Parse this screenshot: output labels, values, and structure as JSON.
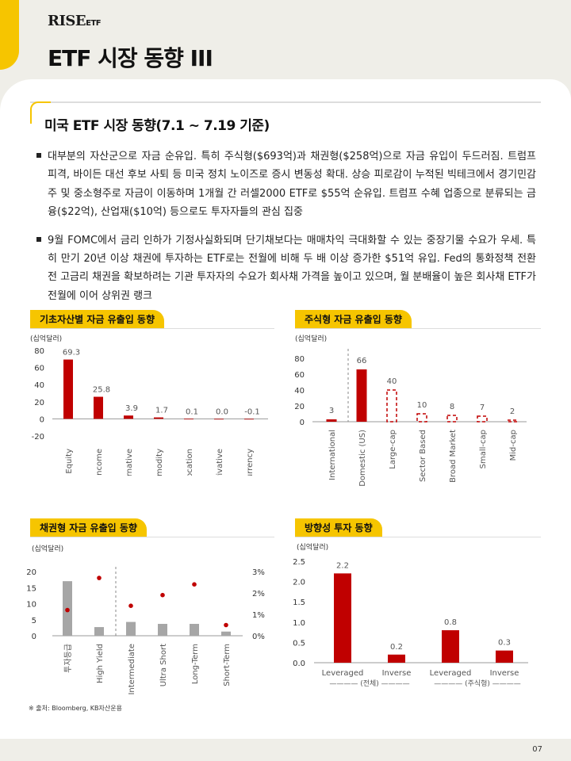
{
  "header": {
    "logo_main": "RISE",
    "logo_sub": "ETF",
    "title": "ETF 시장 동향 III"
  },
  "section": {
    "heading": "미국 ETF 시장 동향(7.1 ~ 7.19 기준)"
  },
  "bullets": [
    "대부분의 자산군으로 자금 순유입. 특히 주식형($693억)과 채권형($258억)으로 자금 유입이 두드러짐. 트럼프 피격, 바이든 대선 후보 사퇴 등 미국 정치 노이즈로 증시 변동성 확대. 상승 피로감이 누적된 빅테크에서 경기민감주 및 중소형주로 자금이 이동하며 1개월 간 러셀2000 ETF로 $55억 순유입. 트럼프 수혜 업종으로 분류되는 금융($22억), 산업재($10억) 등으로도 투자자들의 관심 집중",
    "9월 FOMC에서 금리 인하가 기정사실화되며 단기채보다는 매매차익 극대화할 수 있는 중장기물 수요가 우세. 특히 만기 20년 이상 채권에 투자하는 ETF로는 전월에 비해 두 배 이상 증가한 $51억 유입. Fed의 통화정책 전환 전 고금리 채권을 확보하려는 기관 투자자의 수요가 회사채 가격을 높이고 있으며, 월 분배율이 높은 회사채 ETF가 전월에 이어 상위권 랭크"
  ],
  "charts": [
    {
      "title": "기초자산별 자금 유출입 동향",
      "unit": "(십억달러)",
      "chart_data": {
        "type": "bar",
        "categories": [
          "Equity",
          "Fixed Income",
          "Alternative",
          "Commodity",
          "Asset Allocation",
          "Derivative",
          "Currency"
        ],
        "values": [
          69.3,
          25.8,
          3.9,
          1.7,
          0.1,
          0.0,
          -0.1
        ],
        "labels": [
          "69.3",
          "25.8",
          "3.9",
          "1.7",
          "0.1",
          "0.0",
          "-0.1"
        ],
        "yticks": [
          "80",
          "60",
          "40",
          "20",
          "0",
          "-20"
        ],
        "ylim": [
          -20,
          80
        ],
        "colors": {
          "bar": "#c00000"
        }
      }
    },
    {
      "title": "주식형 자금 유출입 동향",
      "unit": "(십억달러)",
      "chart_data": {
        "type": "bar",
        "categories": [
          "International",
          "Domestic (US)",
          "Large-cap",
          "Sector Based",
          "Broad Market",
          "Small-cap",
          "Mid-cap"
        ],
        "values": [
          3,
          66,
          40,
          10,
          8,
          7,
          2
        ],
        "labels": [
          "3",
          "66",
          "40",
          "10",
          "8",
          "7",
          "2"
        ],
        "styles": [
          "solid",
          "solid",
          "dashed",
          "dashed",
          "dashed",
          "dashed",
          "dashed"
        ],
        "yticks": [
          "80",
          "60",
          "40",
          "20",
          "0"
        ],
        "ylim": [
          0,
          80
        ],
        "colors": {
          "bar": "#c00000"
        }
      }
    },
    {
      "title": "채권형 자금 유출입 동향",
      "unit": "(십억달러)",
      "chart_data": {
        "type": "bar",
        "categories": [
          "투자등급",
          "High Yield",
          "Intermediate",
          "Ultra Short",
          "Long-Term",
          "Short-Term"
        ],
        "series": [
          {
            "values": [
              17,
              2.7,
              4.3,
              3.7,
              3.7,
              1.3
            ]
          },
          {
            "values": [
              1.2,
              2.7,
              1.4,
              1.9,
              2.4,
              0.5
            ]
          }
        ],
        "yticks_left": [
          "20",
          "15",
          "10",
          "5",
          "0"
        ],
        "yticks_right": [
          "3%",
          "2%",
          "1%",
          "0%"
        ],
        "ylim_left": [
          0,
          20
        ],
        "ylim_right": [
          0,
          3
        ],
        "colors": {
          "bar": "#a6a6a6",
          "dot": "#c00000"
        }
      }
    },
    {
      "title": "방향성 투자 동향",
      "unit": "(십억달러)",
      "chart_data": {
        "type": "bar",
        "categories": [
          "Leveraged",
          "Inverse",
          "Leveraged",
          "Inverse"
        ],
        "groups": [
          "———— (전체) ————",
          "———— (주식형) ————"
        ],
        "values": [
          2.2,
          0.2,
          0.8,
          0.3
        ],
        "labels": [
          "2.2",
          "0.2",
          "0.8",
          "0.3"
        ],
        "yticks": [
          "2.5",
          "2.0",
          "1.5",
          "1.0",
          "0.5",
          "0.0"
        ],
        "ylim": [
          0,
          2.5
        ],
        "colors": {
          "bar": "#c00000"
        }
      }
    }
  ],
  "source": "※ 출처: Bloomberg, KB자산운용",
  "page_number": "07"
}
